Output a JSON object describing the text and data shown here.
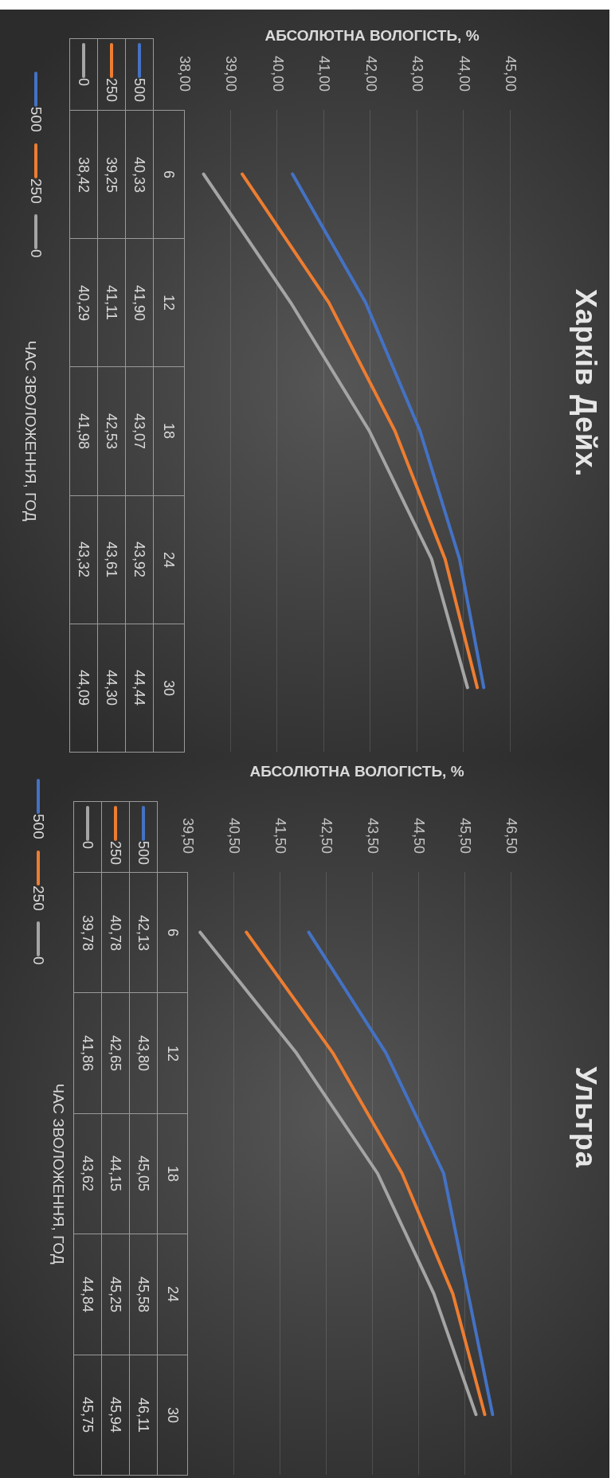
{
  "chart_data": [
    {
      "type": "line",
      "orientation": "horizontal",
      "annotations": [
        "Харків Дейх."
      ],
      "xlabel": "АБСОЛЮТНА ВОЛОГІСТЬ, %",
      "ylabel": "ЧАС ЗВОЛОЖЕННЯ, ГОД",
      "categories": [
        "6",
        "12",
        "18",
        "24",
        "30"
      ],
      "series": [
        {
          "name": "500",
          "color": "#4472c4",
          "values": [
            40.33,
            41.9,
            43.07,
            43.92,
            44.44
          ],
          "value_labels": [
            "40,33",
            "41,90",
            "43,07",
            "43,92",
            "44,44"
          ]
        },
        {
          "name": "250",
          "color": "#ed7d31",
          "values": [
            39.25,
            41.11,
            42.53,
            43.61,
            44.3
          ],
          "value_labels": [
            "39,25",
            "41,11",
            "42,53",
            "43,61",
            "44,30"
          ]
        },
        {
          "name": "0",
          "color": "#a5a5a5",
          "values": [
            38.42,
            40.29,
            41.98,
            43.32,
            44.09
          ],
          "value_labels": [
            "38,42",
            "40,29",
            "41,98",
            "43,32",
            "44,09"
          ]
        }
      ],
      "xlim": [
        38,
        45
      ],
      "xticks": [
        {
          "value": 38,
          "label": "38,00"
        },
        {
          "value": 39,
          "label": "39,00"
        },
        {
          "value": 40,
          "label": "40,00"
        },
        {
          "value": 41,
          "label": "41,00"
        },
        {
          "value": 42,
          "label": "42,00"
        },
        {
          "value": 43,
          "label": "43,00"
        },
        {
          "value": 44,
          "label": "44,00"
        },
        {
          "value": 45,
          "label": "45,00"
        }
      ],
      "grid": "x",
      "legend": "left",
      "marker": "none"
    },
    {
      "type": "line",
      "orientation": "horizontal",
      "annotations": [
        "Ультра"
      ],
      "xlabel": "АБСОЛЮТНА ВОЛОГІСТЬ, %",
      "ylabel": "ЧАС ЗВОЛОЖЕННЯ, ГОД",
      "categories": [
        "6",
        "12",
        "18",
        "24",
        "30"
      ],
      "series": [
        {
          "name": "500",
          "color": "#4472c4",
          "values": [
            42.13,
            43.8,
            45.05,
            45.58,
            46.11
          ],
          "value_labels": [
            "42,13",
            "43,80",
            "45,05",
            "45,58",
            "46,11"
          ]
        },
        {
          "name": "250",
          "color": "#ed7d31",
          "values": [
            40.78,
            42.65,
            44.15,
            45.25,
            45.94
          ],
          "value_labels": [
            "40,78",
            "42,65",
            "44,15",
            "45,25",
            "45,94"
          ]
        },
        {
          "name": "0",
          "color": "#a5a5a5",
          "values": [
            39.78,
            41.86,
            43.62,
            44.84,
            45.75
          ],
          "value_labels": [
            "39,78",
            "41,86",
            "43,62",
            "44,84",
            "45,75"
          ]
        }
      ],
      "xlim": [
        39.5,
        46.5
      ],
      "xticks": [
        {
          "value": 39.5,
          "label": "39,50"
        },
        {
          "value": 40.5,
          "label": "40,50"
        },
        {
          "value": 41.5,
          "label": "41,50"
        },
        {
          "value": 42.5,
          "label": "42,50"
        },
        {
          "value": 43.5,
          "label": "43,50"
        },
        {
          "value": 44.5,
          "label": "44,50"
        },
        {
          "value": 45.5,
          "label": "45,50"
        },
        {
          "value": 46.5,
          "label": "46,50"
        }
      ],
      "grid": "x",
      "legend": "left",
      "marker": "none"
    }
  ]
}
